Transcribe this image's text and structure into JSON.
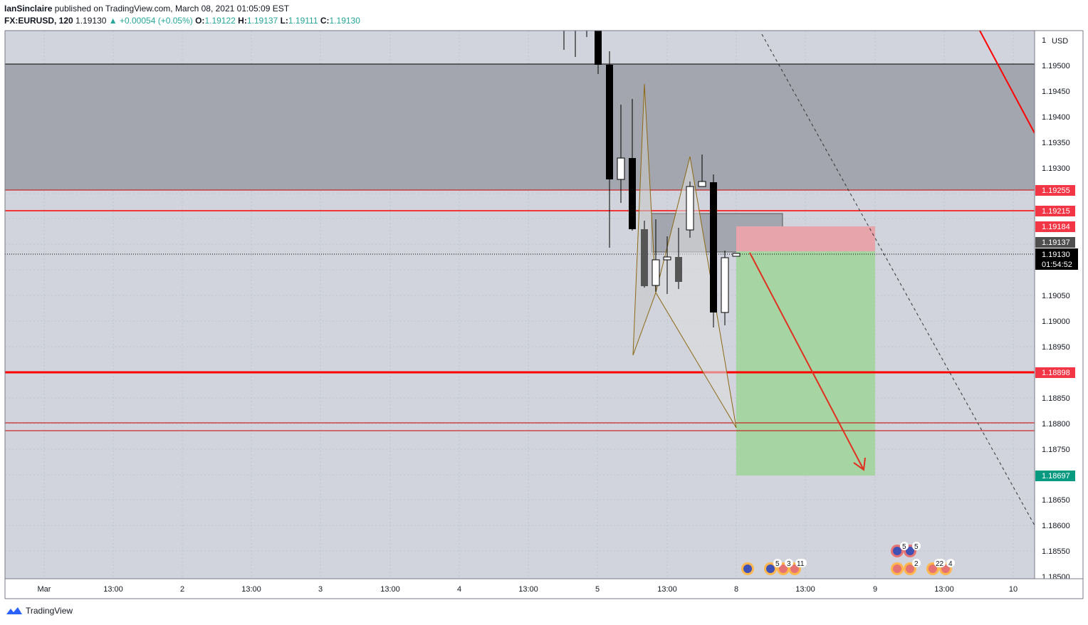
{
  "header": {
    "author": "IanSinclaire",
    "published": "published on TradingView.com, March 08, 2021 01:05:09 EST",
    "symbol": "FX:EURUSD, 120",
    "last": "1.19130",
    "change": "▲ +0.00054 (+0.05%)",
    "o_label": "O:",
    "o": "1.19122",
    "h_label": "H:",
    "h": "1.19137",
    "l_label": "L:",
    "l": "1.19111",
    "c_label": "C:",
    "c": "1.19130"
  },
  "price_axis": {
    "currency": "USD",
    "ticks": [
      "1.19500",
      "1.19450",
      "1.19400",
      "1.19350",
      "1.19300",
      "1.19050",
      "1.19000",
      "1.18950",
      "1.18850",
      "1.18800",
      "1.18750",
      "1.18650",
      "1.18600",
      "1.18550",
      "1.18500"
    ],
    "top_partial": "1"
  },
  "price_tags": [
    {
      "value": "1.19255",
      "color": "#f23645"
    },
    {
      "value": "1.19215",
      "color": "#f23645"
    },
    {
      "value": "1.19184",
      "color": "#f23645"
    },
    {
      "value": "1.19137",
      "color": "#4f4f4f"
    },
    {
      "value": "1.19130",
      "color": "#000000"
    },
    {
      "value": "1.18898",
      "color": "#f23645"
    },
    {
      "value": "1.18697",
      "color": "#089981"
    }
  ],
  "countdown": "01:54:52",
  "time_axis": [
    "Mar",
    "13:00",
    "2",
    "13:00",
    "3",
    "13:00",
    "4",
    "13:00",
    "5",
    "13:00",
    "8",
    "13:00",
    "9",
    "13:00",
    "10"
  ],
  "event_badges": [
    "5",
    "3",
    "11",
    "5",
    "5",
    "2",
    "22",
    "4"
  ],
  "footer": {
    "brand": "TradingView"
  },
  "colors": {
    "bull": "#ffffff",
    "bear": "#000000",
    "support": "#ff0000",
    "zone": "#a7a9b0",
    "long_green": "#a5d6a7",
    "short_red": "#ef9a9a",
    "pattern": "#8b6914"
  }
}
